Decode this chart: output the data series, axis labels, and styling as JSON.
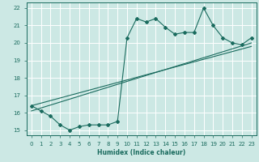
{
  "xlabel": "Humidex (Indice chaleur)",
  "ylabel": "",
  "xlim": [
    -0.5,
    23.5
  ],
  "ylim": [
    14.7,
    22.3
  ],
  "yticks": [
    15,
    16,
    17,
    18,
    19,
    20,
    21,
    22
  ],
  "xticks": [
    0,
    1,
    2,
    3,
    4,
    5,
    6,
    7,
    8,
    9,
    10,
    11,
    12,
    13,
    14,
    15,
    16,
    17,
    18,
    19,
    20,
    21,
    22,
    23
  ],
  "bg_color": "#cce8e4",
  "line_color": "#1a6b5e",
  "grid_color": "#ffffff",
  "line1_x": [
    0,
    1,
    2,
    3,
    4,
    5,
    6,
    7,
    8,
    9,
    10,
    11,
    12,
    13,
    14,
    15,
    16,
    17,
    18,
    19,
    20,
    21,
    22,
    23
  ],
  "line1_y": [
    16.4,
    16.1,
    15.8,
    15.3,
    15.0,
    15.2,
    15.3,
    15.3,
    15.3,
    15.5,
    20.3,
    21.4,
    21.2,
    21.4,
    20.9,
    20.5,
    20.6,
    20.6,
    22.0,
    21.0,
    20.3,
    20.0,
    19.9,
    20.3
  ],
  "line2_x": [
    0,
    23
  ],
  "line2_y": [
    16.1,
    20.0
  ],
  "line3_x": [
    0,
    23
  ],
  "line3_y": [
    16.4,
    19.8
  ],
  "xlabel_fontsize": 5.5,
  "ylabel_fontsize": 5.5,
  "tick_fontsize": 5.0,
  "lw": 0.8,
  "ms": 2.0
}
